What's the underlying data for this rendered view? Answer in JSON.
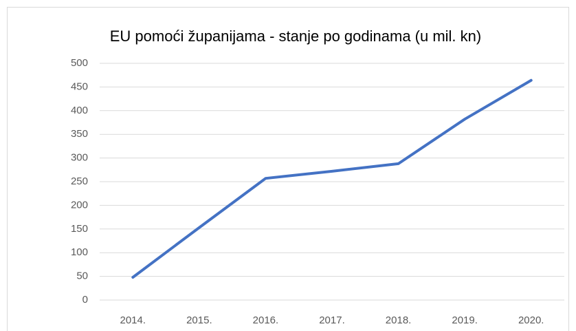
{
  "chart_data": {
    "type": "line",
    "title": "EU pomoći županijama - stanje po godinama (u mil. kn)",
    "categories": [
      "2014.",
      "2015.",
      "2016.",
      "2017.",
      "2018.",
      "2019.",
      "2020."
    ],
    "values": [
      48,
      153,
      257,
      272,
      288,
      382,
      464
    ],
    "color": "#4472c4",
    "ylim": [
      0,
      500
    ],
    "yticks": [
      0,
      50,
      100,
      150,
      200,
      250,
      300,
      350,
      400,
      450,
      500
    ],
    "grid": true
  }
}
